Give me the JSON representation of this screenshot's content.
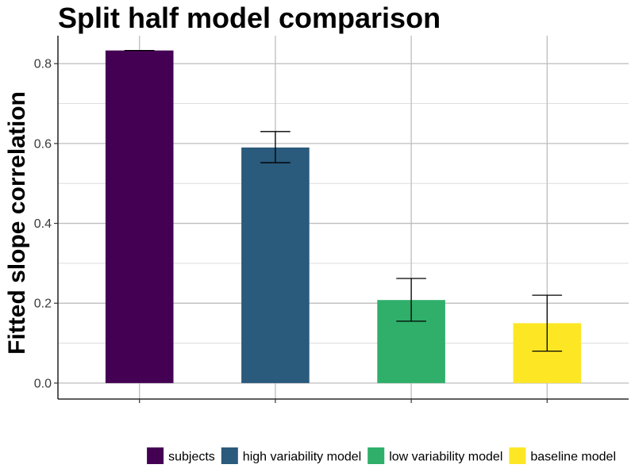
{
  "chart_data": {
    "type": "bar",
    "title": "Split half model comparison",
    "xlabel": "",
    "ylabel": "Fitted slope correlation",
    "ylim": [
      -0.04,
      0.87
    ],
    "yticks": [
      0.0,
      0.2,
      0.4,
      0.6,
      0.8
    ],
    "ytick_labels": [
      "0.0",
      "0.2",
      "0.4",
      "0.6",
      "0.8"
    ],
    "grid": true,
    "legend_position": "bottom",
    "categories": [
      "subjects",
      "high variability model",
      "low variability model",
      "baseline model"
    ],
    "values": [
      0.833,
      0.59,
      0.208,
      0.15
    ],
    "error_low": [
      0.833,
      0.552,
      0.155,
      0.08
    ],
    "error_high": [
      0.833,
      0.63,
      0.262,
      0.22
    ],
    "colors": [
      "#440154",
      "#2A5A7C",
      "#2FAF6A",
      "#FDE725"
    ]
  }
}
